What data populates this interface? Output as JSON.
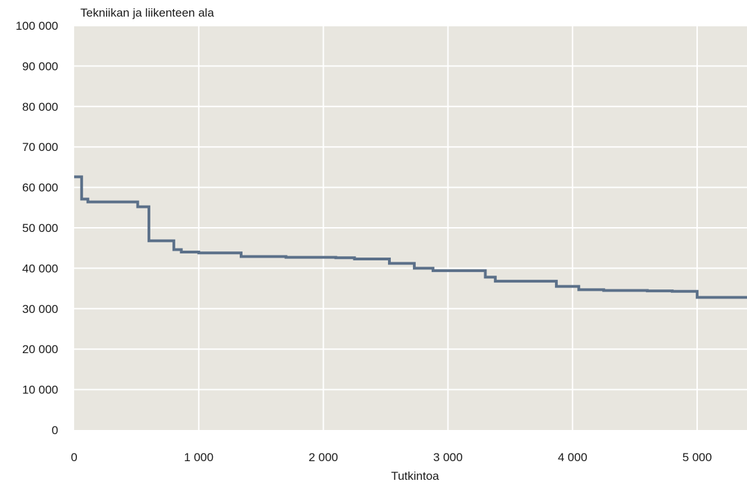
{
  "chart_data": {
    "type": "line",
    "title": "Tekniikan ja liikenteen ala",
    "xlabel": "Tutkintoa",
    "ylabel": "",
    "xlim": [
      0,
      5400
    ],
    "ylim": [
      0,
      100000
    ],
    "x_ticks": [
      0,
      1000,
      2000,
      3000,
      4000,
      5000
    ],
    "x_tick_labels": [
      "0",
      "1 000",
      "2 000",
      "3 000",
      "4 000",
      "5 000"
    ],
    "y_ticks": [
      0,
      10000,
      20000,
      30000,
      40000,
      50000,
      60000,
      70000,
      80000,
      90000,
      100000
    ],
    "y_tick_labels": [
      "0",
      "10 000",
      "20 000",
      "30 000",
      "40 000",
      "50 000",
      "60 000",
      "70 000",
      "80 000",
      "90 000",
      "100 000"
    ],
    "grid": true,
    "step": true,
    "series": [
      {
        "name": "",
        "x": [
          0,
          60,
          110,
          510,
          600,
          800,
          860,
          1000,
          1340,
          1700,
          2100,
          2250,
          2530,
          2730,
          2880,
          3300,
          3380,
          3870,
          4050,
          4250,
          4600,
          4800,
          5000,
          5400
        ],
        "y": [
          62600,
          57100,
          56400,
          55200,
          46800,
          44600,
          44000,
          43800,
          42900,
          42700,
          42600,
          42300,
          41200,
          40000,
          39400,
          37800,
          36800,
          35500,
          34700,
          34500,
          34400,
          34300,
          32800,
          32800
        ]
      }
    ],
    "colors": {
      "line": "#5b7089",
      "plot_bg": "#e8e6df",
      "grid": "#ffffff"
    }
  }
}
